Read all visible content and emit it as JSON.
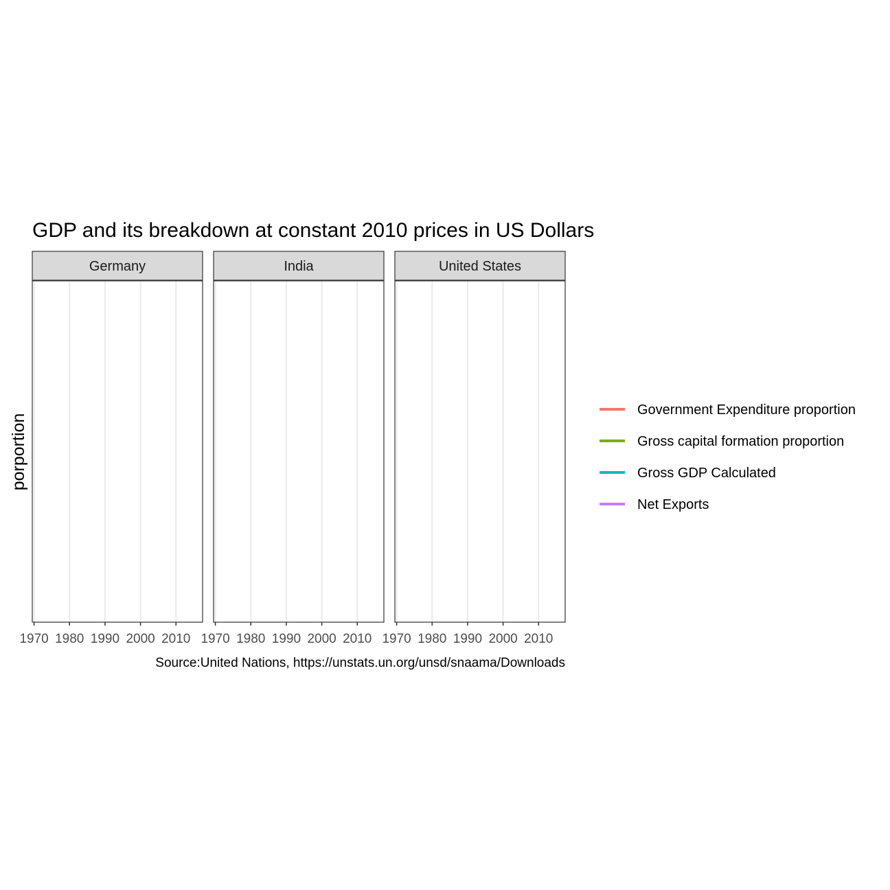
{
  "chart_data": {
    "type": "line",
    "title": "GDP and its breakdown at constant 2010 prices in US Dollars",
    "ylabel": "porportion",
    "xlabel": "",
    "caption": "Source:United Nations, https://unstats.un.org/unsd/snaama/Downloads",
    "x_range": [
      1969.5,
      2017.5
    ],
    "x_ticks": [
      1970,
      1980,
      1990,
      2000,
      2010
    ],
    "x_tick_labels": [
      "1970",
      "1980",
      "1990",
      "2000",
      "2010"
    ],
    "grid": true,
    "legend_position": "right",
    "facets": [
      {
        "label": "Germany",
        "series": []
      },
      {
        "label": "India",
        "series": []
      },
      {
        "label": "United States",
        "series": []
      }
    ],
    "legend": [
      {
        "name": "Government Expenditure proportion",
        "color": "#F8766D"
      },
      {
        "name": "Gross capital formation proportion",
        "color": "#7CAE00"
      },
      {
        "name": "Gross GDP Calculated",
        "color": "#00BFC4"
      },
      {
        "name": "Net Exports",
        "color": "#C77CFF"
      }
    ]
  }
}
